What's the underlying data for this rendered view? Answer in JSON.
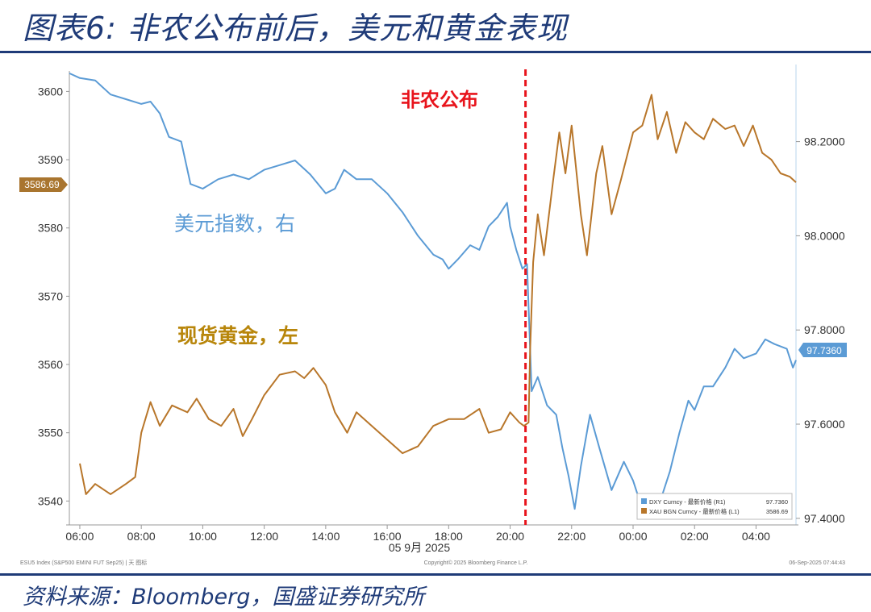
{
  "header": {
    "title": "图表6: 非农公布前后，美元和黄金表现"
  },
  "footer": {
    "source": "资料来源：Bloomberg，国盛证券研究所"
  },
  "chart_data": {
    "type": "line",
    "x_ticks": [
      "06:00",
      "08:00",
      "10:00",
      "12:00",
      "14:00",
      "16:00",
      "18:00",
      "20:00",
      "22:00",
      "00:00",
      "02:00",
      "04:00"
    ],
    "x_date_label": "05 9月 2025",
    "y_left": {
      "ticks": [
        3540,
        3550,
        3560,
        3570,
        3580,
        3590,
        3600
      ],
      "range": [
        3536.5,
        3603
      ]
    },
    "y_right": {
      "ticks": [
        "97.4000",
        "97.6000",
        "97.8000",
        "98.0000",
        "98.2000"
      ],
      "range": [
        97.386,
        98.35
      ]
    },
    "x_range": [
      5.66,
      29.3
    ],
    "event": {
      "label": "非农公布",
      "x": 20.5,
      "color": "#e8141c"
    },
    "annotations": {
      "dxy": {
        "text": "美元指数，右",
        "color": "#5b9bd5"
      },
      "gold": {
        "text": "现货黄金，左",
        "color": "#b8860b"
      }
    },
    "badges": {
      "gold_last": "3586.69",
      "dxy_last": "97.7360"
    },
    "legend": {
      "rows": [
        {
          "name": "DXY Curncy - 最新价格 (R1)",
          "value": "97.7360",
          "color": "#5b9bd5"
        },
        {
          "name": "XAU BGN Curncy - 最新价格 (L1)",
          "value": "3586.69",
          "color": "#b8762a"
        }
      ]
    },
    "footnotes": {
      "left": "ESU5 Index (S&P500 EMINI FUT Sep25) | 天 图标",
      "center": "Copyright© 2025 Bloomberg Finance L.P.",
      "right": "06-Sep-2025 07:44:43"
    },
    "series": [
      {
        "name": "DXY Curncy",
        "axis": "right",
        "color": "#5b9bd5",
        "points": [
          [
            5.66,
            98.345
          ],
          [
            6.0,
            98.335
          ],
          [
            6.5,
            98.33
          ],
          [
            7.0,
            98.3
          ],
          [
            7.5,
            98.29
          ],
          [
            8.0,
            98.28
          ],
          [
            8.3,
            98.285
          ],
          [
            8.6,
            98.26
          ],
          [
            8.9,
            98.21
          ],
          [
            9.3,
            98.2
          ],
          [
            9.6,
            98.11
          ],
          [
            10.0,
            98.1
          ],
          [
            10.5,
            98.12
          ],
          [
            11.0,
            98.13
          ],
          [
            11.5,
            98.12
          ],
          [
            12.0,
            98.14
          ],
          [
            12.5,
            98.15
          ],
          [
            13.0,
            98.16
          ],
          [
            13.5,
            98.13
          ],
          [
            14.0,
            98.09
          ],
          [
            14.3,
            98.1
          ],
          [
            14.6,
            98.14
          ],
          [
            15.0,
            98.12
          ],
          [
            15.5,
            98.12
          ],
          [
            16.0,
            98.09
          ],
          [
            16.5,
            98.05
          ],
          [
            17.0,
            98.0
          ],
          [
            17.5,
            97.96
          ],
          [
            17.8,
            97.95
          ],
          [
            18.0,
            97.93
          ],
          [
            18.3,
            97.95
          ],
          [
            18.7,
            97.98
          ],
          [
            19.0,
            97.97
          ],
          [
            19.3,
            98.02
          ],
          [
            19.6,
            98.04
          ],
          [
            19.9,
            98.07
          ],
          [
            20.0,
            98.02
          ],
          [
            20.2,
            97.97
          ],
          [
            20.4,
            97.93
          ],
          [
            20.55,
            97.94
          ],
          [
            20.7,
            97.67
          ],
          [
            20.9,
            97.7
          ],
          [
            21.2,
            97.64
          ],
          [
            21.5,
            97.62
          ],
          [
            21.7,
            97.55
          ],
          [
            21.9,
            97.49
          ],
          [
            22.1,
            97.42
          ],
          [
            22.3,
            97.51
          ],
          [
            22.6,
            97.62
          ],
          [
            22.9,
            97.55
          ],
          [
            23.3,
            97.46
          ],
          [
            23.7,
            97.52
          ],
          [
            24.0,
            97.48
          ],
          [
            24.3,
            97.42
          ],
          [
            24.6,
            97.41
          ],
          [
            24.9,
            97.44
          ],
          [
            25.2,
            97.5
          ],
          [
            25.5,
            97.58
          ],
          [
            25.8,
            97.65
          ],
          [
            26.0,
            97.63
          ],
          [
            26.3,
            97.68
          ],
          [
            26.6,
            97.68
          ],
          [
            27.0,
            97.72
          ],
          [
            27.3,
            97.76
          ],
          [
            27.6,
            97.74
          ],
          [
            28.0,
            97.75
          ],
          [
            28.3,
            97.78
          ],
          [
            28.6,
            97.77
          ],
          [
            29.0,
            97.76
          ],
          [
            29.2,
            97.72
          ],
          [
            29.3,
            97.736
          ]
        ]
      },
      {
        "name": "XAU BGN Curncy",
        "axis": "left",
        "color": "#b8762a",
        "points": [
          [
            6.0,
            3545.5
          ],
          [
            6.2,
            3541.0
          ],
          [
            6.5,
            3542.5
          ],
          [
            7.0,
            3541.0
          ],
          [
            7.5,
            3542.5
          ],
          [
            7.8,
            3543.5
          ],
          [
            8.0,
            3550.0
          ],
          [
            8.3,
            3554.5
          ],
          [
            8.6,
            3551.0
          ],
          [
            9.0,
            3554.0
          ],
          [
            9.5,
            3553.0
          ],
          [
            9.8,
            3555.0
          ],
          [
            10.2,
            3552.0
          ],
          [
            10.6,
            3551.0
          ],
          [
            11.0,
            3553.5
          ],
          [
            11.3,
            3549.5
          ],
          [
            11.6,
            3552.0
          ],
          [
            12.0,
            3555.5
          ],
          [
            12.5,
            3558.5
          ],
          [
            13.0,
            3559.0
          ],
          [
            13.3,
            3558.0
          ],
          [
            13.6,
            3559.5
          ],
          [
            14.0,
            3557.0
          ],
          [
            14.3,
            3553.0
          ],
          [
            14.7,
            3550.0
          ],
          [
            15.0,
            3553.0
          ],
          [
            15.5,
            3551.0
          ],
          [
            16.0,
            3549.0
          ],
          [
            16.5,
            3547.0
          ],
          [
            17.0,
            3548.0
          ],
          [
            17.5,
            3551.0
          ],
          [
            18.0,
            3552.0
          ],
          [
            18.5,
            3552.0
          ],
          [
            19.0,
            3553.5
          ],
          [
            19.3,
            3550.0
          ],
          [
            19.7,
            3550.5
          ],
          [
            20.0,
            3553.0
          ],
          [
            20.3,
            3551.5
          ],
          [
            20.45,
            3551.0
          ],
          [
            20.6,
            3551.5
          ],
          [
            20.65,
            3562.0
          ],
          [
            20.75,
            3575.0
          ],
          [
            20.9,
            3582.0
          ],
          [
            21.1,
            3576.0
          ],
          [
            21.4,
            3587.0
          ],
          [
            21.6,
            3594.0
          ],
          [
            21.8,
            3588.0
          ],
          [
            22.0,
            3595.0
          ],
          [
            22.3,
            3582.0
          ],
          [
            22.5,
            3576.0
          ],
          [
            22.8,
            3588.0
          ],
          [
            23.0,
            3592.0
          ],
          [
            23.3,
            3582.0
          ],
          [
            23.6,
            3587.0
          ],
          [
            24.0,
            3594.0
          ],
          [
            24.3,
            3595.0
          ],
          [
            24.6,
            3599.5
          ],
          [
            24.8,
            3593.0
          ],
          [
            25.1,
            3597.0
          ],
          [
            25.4,
            3591.0
          ],
          [
            25.7,
            3595.5
          ],
          [
            26.0,
            3594.0
          ],
          [
            26.3,
            3593.0
          ],
          [
            26.6,
            3596.0
          ],
          [
            27.0,
            3594.5
          ],
          [
            27.3,
            3595.0
          ],
          [
            27.6,
            3592.0
          ],
          [
            27.9,
            3595.0
          ],
          [
            28.2,
            3591.0
          ],
          [
            28.5,
            3590.0
          ],
          [
            28.8,
            3588.0
          ],
          [
            29.1,
            3587.5
          ],
          [
            29.3,
            3586.69
          ]
        ]
      }
    ]
  }
}
